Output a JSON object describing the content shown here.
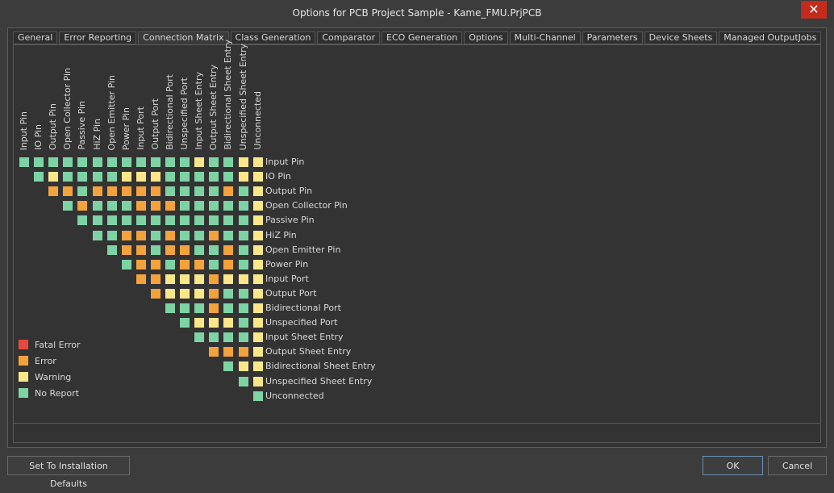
{
  "window": {
    "title": "Options for PCB Project Sample - Kame_FMU.PrjPCB",
    "close_label": "✕"
  },
  "tabs": [
    "General",
    "Error Reporting",
    "Connection Matrix",
    "Class Generation",
    "Comparator",
    "ECO Generation",
    "Options",
    "Multi-Channel",
    "Parameters",
    "Device Sheets",
    "Managed OutputJobs"
  ],
  "active_tab": 2,
  "matrix": {
    "labels": [
      "Input Pin",
      "IO Pin",
      "Output Pin",
      "Open Collector Pin",
      "Passive Pin",
      "HiZ Pin",
      "Open Emitter Pin",
      "Power Pin",
      "Input Port",
      "Output Port",
      "Bidirectional Port",
      "Unspecified Port",
      "Input Sheet Entry",
      "Output Sheet Entry",
      "Bidirectional Sheet Entry",
      "Unspecified Sheet Entry",
      "Unconnected"
    ],
    "rows": [
      "NNNNNNNNNNNNWNNWW",
      "NWNNNNWWWNNNNNWW",
      "EENEEEEENNNNENW",
      "NENNNEEENNNNNW",
      "NNNNNNNNNNNNW",
      "NNEENENNENNW",
      "NEENEENNENW",
      "NEENEENENW",
      "EEWWWEWWW",
      "EWWWENNW",
      "NNNENNW",
      "NWWWNW",
      "NNNNW",
      "EEEW",
      "NWW",
      "NW",
      "N"
    ]
  },
  "legend": [
    {
      "code": "F",
      "label": "Fatal Error",
      "color": "#e8493f"
    },
    {
      "code": "E",
      "label": "Error",
      "color": "#f4a23c"
    },
    {
      "code": "W",
      "label": "Warning",
      "color": "#fbe78a"
    },
    {
      "code": "N",
      "label": "No Report",
      "color": "#7ed3a5"
    }
  ],
  "buttons": {
    "defaults": "Set To Installation Defaults",
    "ok": "OK",
    "cancel": "Cancel"
  }
}
